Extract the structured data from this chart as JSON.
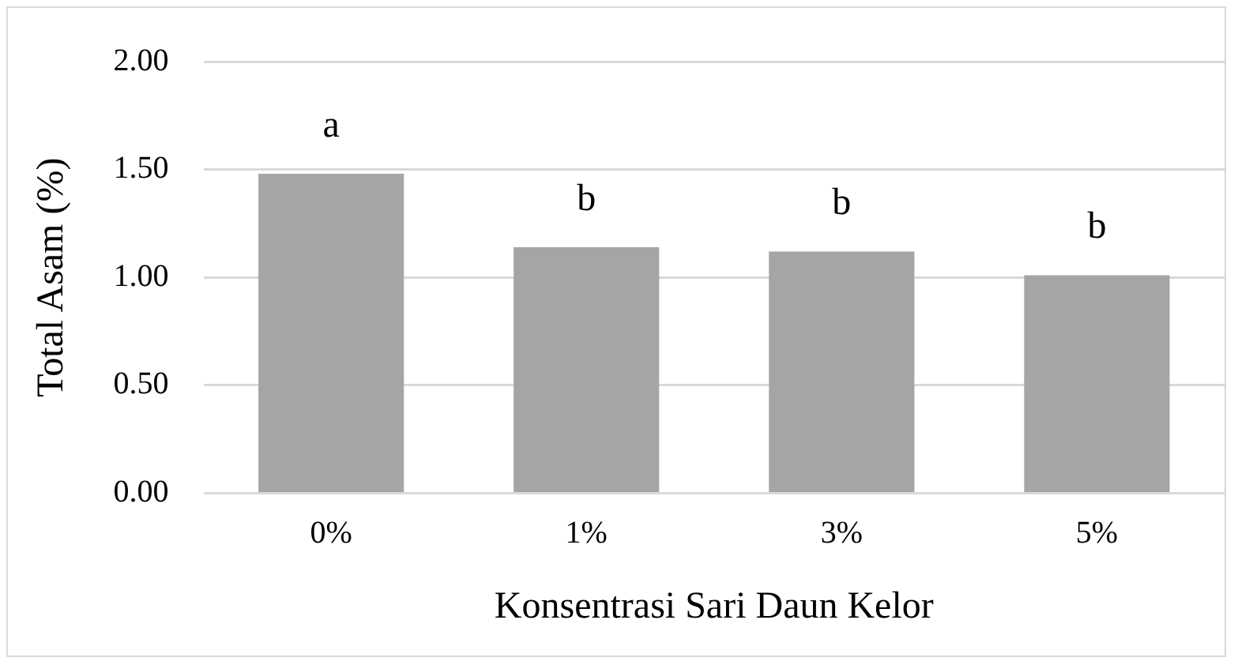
{
  "chart_data": {
    "type": "bar",
    "xlabel": "Konsentrasi Sari Daun Kelor",
    "ylabel": "Total Asam (%)",
    "categories": [
      "0%",
      "1%",
      "3%",
      "5%"
    ],
    "values": [
      1.48,
      1.14,
      1.12,
      1.01
    ],
    "color": "#a5a5a5",
    "ylim": [
      0,
      2
    ],
    "yticks": [
      {
        "value": 0,
        "label": "0.00"
      },
      {
        "value": 0.5,
        "label": "0.50"
      },
      {
        "value": 1,
        "label": "1.00"
      },
      {
        "value": 1.5,
        "label": "1.50"
      },
      {
        "value": 2,
        "label": "2.00"
      }
    ],
    "grid": "y",
    "legend": false,
    "annotations": [
      {
        "text": "a",
        "x": "0%",
        "y": 1.48
      },
      {
        "text": "b",
        "x": "1%",
        "y": 1.14
      },
      {
        "text": "b",
        "x": "3%",
        "y": 1.12
      },
      {
        "text": "b",
        "x": "5%",
        "y": 1.01
      }
    ]
  }
}
